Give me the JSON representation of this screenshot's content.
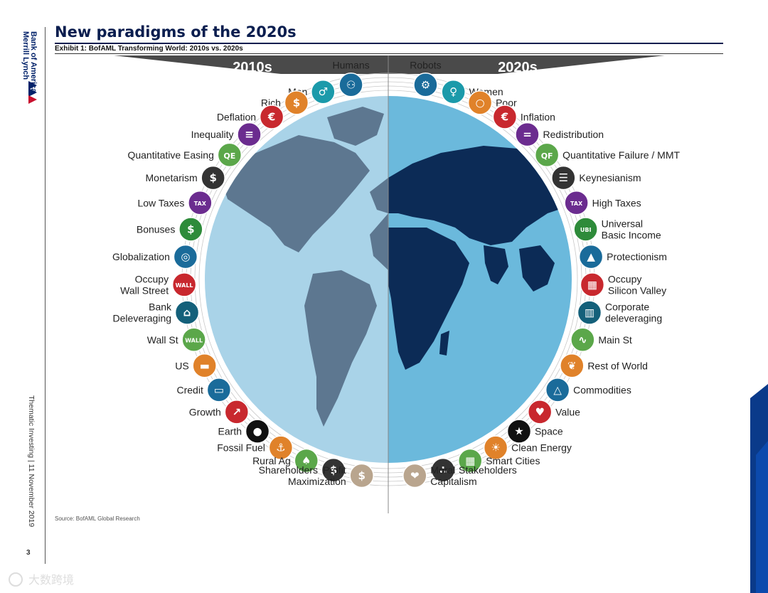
{
  "brand": {
    "line1": "Bank of America",
    "line2": "Merrill Lynch"
  },
  "page": {
    "title": "New paradigms of the 2020s",
    "subtitle": "Exhibit 1: BofAML Transforming World: 2010s vs. 2020s",
    "source": "Source: BofAML Global Research",
    "footer_vertical": "Thematic Investing | 11 November 2019",
    "page_number": "3"
  },
  "header": {
    "left": "2010s",
    "right": "2020s"
  },
  "colors": {
    "navy": "#0b1e4f",
    "ocean_left": "#a9d3e8",
    "land_left": "#5d7790",
    "ocean_right": "#6bb9dc",
    "land_right": "#0c2b56",
    "teal": "#1b9aaa",
    "purple": "#6b2c8f",
    "orange": "#e0822a",
    "green": "#2e8b3a",
    "red": "#c8282e",
    "dark": "#333333",
    "blue": "#1a6b9a"
  },
  "left_items": [
    {
      "label": "Humans",
      "icon": "people-group-icon",
      "color": "#1a6b9a"
    },
    {
      "label": "Men",
      "icon": "man-icon",
      "color": "#1b9aaa"
    },
    {
      "label": "Rich",
      "icon": "money-bag-icon",
      "color": "#e0822a"
    },
    {
      "label": "Deflation",
      "icon": "euro-down-icon",
      "color": "#c8282e"
    },
    {
      "label": "Inequality",
      "icon": "unequal-people-icon",
      "color": "#6b2c8f"
    },
    {
      "label": "Quantitative Easing",
      "icon": "qe-banknote-icon",
      "color": "#5ba74a"
    },
    {
      "label": "Monetarism",
      "icon": "dollar-network-icon",
      "color": "#333333"
    },
    {
      "label": "Low Taxes",
      "icon": "tax-down-icon",
      "color": "#6b2c8f"
    },
    {
      "label": "Bonuses",
      "icon": "bonus-person-icon",
      "color": "#2e8b3a"
    },
    {
      "label": "Globalization",
      "icon": "globe-icon",
      "color": "#1a6b9a"
    },
    {
      "label": "Occupy\nWall Street",
      "icon": "wall-street-protest-icon",
      "color": "#c8282e"
    },
    {
      "label": "Bank\nDeleveraging",
      "icon": "bank-building-icon",
      "color": "#14607a"
    },
    {
      "label": "Wall St",
      "icon": "wall-street-sign-icon",
      "color": "#5ba74a"
    },
    {
      "label": "US",
      "icon": "usa-map-icon",
      "color": "#e0822a"
    },
    {
      "label": "Credit",
      "icon": "credit-card-icon",
      "color": "#1a6b9a"
    },
    {
      "label": "Growth",
      "icon": "growth-chart-icon",
      "color": "#c8282e"
    },
    {
      "label": "Earth",
      "icon": "earth-icon",
      "color": "#111111"
    },
    {
      "label": "Fossil Fuel",
      "icon": "oil-pump-icon",
      "color": "#e0822a"
    },
    {
      "label": "Rural Ag",
      "icon": "farmer-icon",
      "color": "#5ba74a"
    },
    {
      "label": "Shareholders",
      "icon": "shareholders-icon",
      "color": "#333333"
    },
    {
      "label": "Profit\nMaximization",
      "icon": "profit-hand-icon",
      "color": "#b9a58e"
    }
  ],
  "right_items": [
    {
      "label": "Robots",
      "icon": "robot-icon",
      "color": "#1a6b9a"
    },
    {
      "label": "Women",
      "icon": "woman-icon",
      "color": "#1b9aaa"
    },
    {
      "label": "Poor",
      "icon": "empty-bag-icon",
      "color": "#e0822a"
    },
    {
      "label": "Inflation",
      "icon": "euro-up-icon",
      "color": "#c8282e"
    },
    {
      "label": "Redistribution",
      "icon": "equal-people-icon",
      "color": "#6b2c8f"
    },
    {
      "label": "Quantitative Failure / MMT",
      "icon": "qf-banknote-icon",
      "color": "#5ba74a"
    },
    {
      "label": "Keynesianism",
      "icon": "book-icon",
      "color": "#333333"
    },
    {
      "label": "High Taxes",
      "icon": "tax-up-icon",
      "color": "#6b2c8f"
    },
    {
      "label": "Universal\nBasic Income",
      "icon": "ubi-badge-icon",
      "color": "#2e8b3a"
    },
    {
      "label": "Protectionism",
      "icon": "shield-lock-icon",
      "color": "#1a6b9a"
    },
    {
      "label": "Occupy\nSilicon Valley",
      "icon": "silicon-valley-protest-icon",
      "color": "#c8282e"
    },
    {
      "label": "Corporate\ndeleveraging",
      "icon": "office-buildings-icon",
      "color": "#14607a"
    },
    {
      "label": "Main St",
      "icon": "road-icon",
      "color": "#5ba74a"
    },
    {
      "label": "Rest of World",
      "icon": "world-map-icon",
      "color": "#e0822a"
    },
    {
      "label": "Commodities",
      "icon": "commodities-icon",
      "color": "#1a6b9a"
    },
    {
      "label": "Value",
      "icon": "value-hand-icon",
      "color": "#c8282e"
    },
    {
      "label": "Space",
      "icon": "rocket-globe-icon",
      "color": "#111111"
    },
    {
      "label": "Clean Energy",
      "icon": "lightbulb-icon",
      "color": "#e0822a"
    },
    {
      "label": "Smart Cities",
      "icon": "smart-city-icon",
      "color": "#5ba74a"
    },
    {
      "label": "Stakeholders",
      "icon": "stakeholders-network-icon",
      "color": "#333333"
    },
    {
      "label": "Moral\nCapitalism",
      "icon": "moral-hand-icon",
      "color": "#b9a58e"
    }
  ],
  "icon_glyphs": {
    "people-group-icon": "⚇",
    "man-icon": "♂",
    "money-bag-icon": "$",
    "euro-down-icon": "€",
    "unequal-people-icon": "≡",
    "qe-banknote-icon": "QE",
    "dollar-network-icon": "$",
    "tax-down-icon": "TAX",
    "bonus-person-icon": "$",
    "globe-icon": "◎",
    "wall-street-protest-icon": "WALL",
    "bank-building-icon": "⌂",
    "wall-street-sign-icon": "WALL",
    "usa-map-icon": "▬",
    "credit-card-icon": "▭",
    "growth-chart-icon": "↗",
    "earth-icon": "●",
    "oil-pump-icon": "⚓",
    "farmer-icon": "♠",
    "shareholders-icon": "$",
    "profit-hand-icon": "$",
    "robot-icon": "⚙",
    "woman-icon": "♀",
    "empty-bag-icon": "○",
    "euro-up-icon": "€",
    "equal-people-icon": "=",
    "qf-banknote-icon": "QF",
    "book-icon": "☰",
    "tax-up-icon": "TAX",
    "ubi-badge-icon": "UBI",
    "shield-lock-icon": "▲",
    "silicon-valley-protest-icon": "▦",
    "office-buildings-icon": "▥",
    "road-icon": "∿",
    "world-map-icon": "❦",
    "commodities-icon": "△",
    "value-hand-icon": "♥",
    "rocket-globe-icon": "★",
    "lightbulb-icon": "☀",
    "smart-city-icon": "▦",
    "stakeholders-network-icon": "∴",
    "moral-hand-icon": "❤"
  },
  "watermark": {
    "text": "大数跨境"
  }
}
